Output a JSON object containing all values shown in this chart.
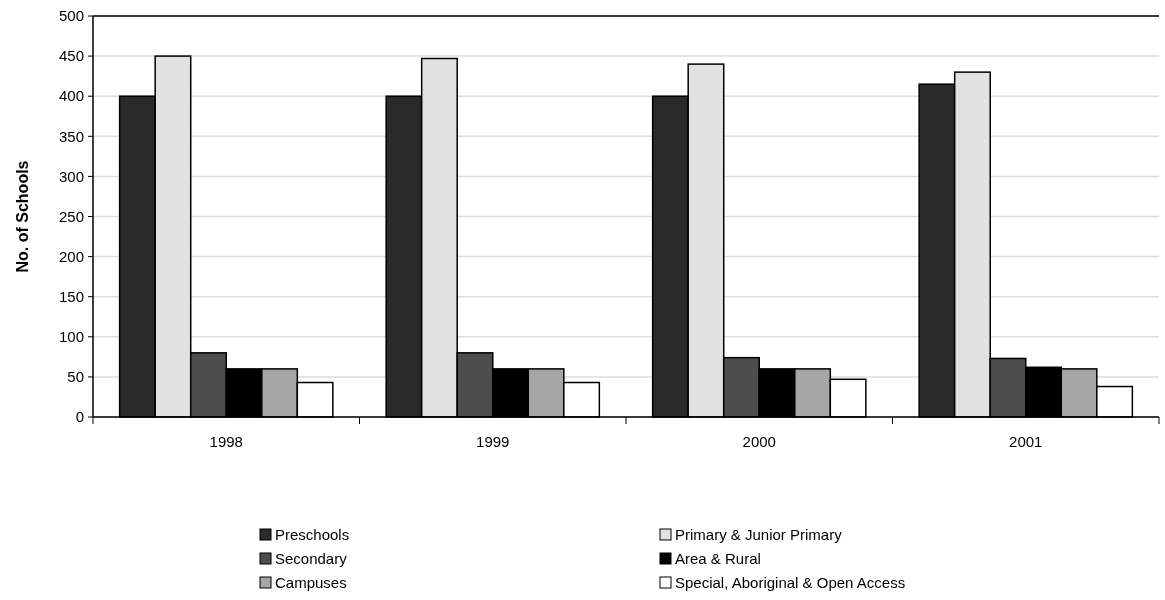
{
  "chart_data": {
    "type": "bar",
    "ylabel": "No. of Schools",
    "categories": [
      "1998",
      "1999",
      "2000",
      "2001"
    ],
    "series": [
      {
        "name": "Preschools",
        "color": "#2a2a2a",
        "values": [
          400,
          400,
          400,
          415
        ]
      },
      {
        "name": "Primary & Junior Primary",
        "color": "#e2e2e2",
        "values": [
          450,
          447,
          440,
          430
        ]
      },
      {
        "name": "Secondary",
        "color": "#4d4d4d",
        "values": [
          80,
          80,
          74,
          73
        ]
      },
      {
        "name": "Area & Rural",
        "color": "#000000",
        "values": [
          60,
          60,
          60,
          62
        ]
      },
      {
        "name": "Campuses",
        "color": "#a6a6a6",
        "values": [
          60,
          60,
          60,
          60
        ]
      },
      {
        "name": "Special, Aboriginal & Open Access",
        "color": "#ffffff",
        "values": [
          43,
          43,
          47,
          38
        ]
      }
    ],
    "ylim": [
      0,
      500
    ],
    "yticks": [
      0,
      50,
      100,
      150,
      200,
      250,
      300,
      350,
      400,
      450,
      500
    ],
    "grid": "y",
    "legend": "bottom"
  }
}
